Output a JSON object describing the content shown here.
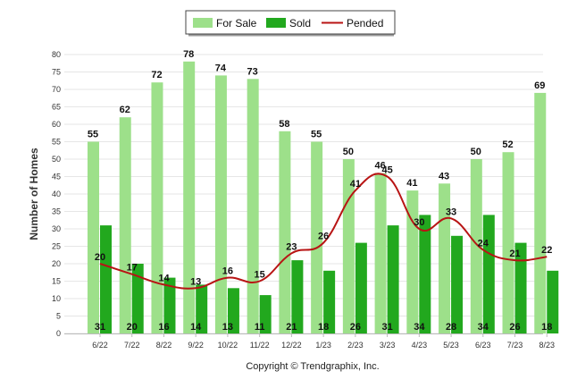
{
  "chart_data": {
    "type": "bar",
    "categories": [
      "6/22",
      "7/22",
      "8/22",
      "9/22",
      "10/22",
      "11/22",
      "12/22",
      "1/23",
      "2/23",
      "3/23",
      "4/23",
      "5/23",
      "6/23",
      "7/23",
      "8/23"
    ],
    "series": [
      {
        "name": "For Sale",
        "type": "bar",
        "color": "#9de08a",
        "values": [
          55,
          62,
          72,
          78,
          74,
          73,
          58,
          55,
          50,
          46,
          41,
          43,
          50,
          52,
          69
        ]
      },
      {
        "name": "Sold",
        "type": "bar",
        "color": "#22a81e",
        "values": [
          31,
          20,
          16,
          14,
          13,
          11,
          21,
          18,
          26,
          31,
          34,
          28,
          34,
          26,
          18
        ]
      },
      {
        "name": "Pended",
        "type": "line",
        "color": "#b81414",
        "values": [
          20,
          17,
          14,
          13,
          16,
          15,
          23,
          26,
          41,
          45,
          30,
          33,
          24,
          21,
          22
        ]
      }
    ],
    "ylabel": "Number of Homes",
    "xlabel": "",
    "ylim": [
      0,
      80
    ],
    "yticks": [
      0,
      5,
      10,
      15,
      20,
      25,
      30,
      35,
      40,
      45,
      50,
      55,
      60,
      65,
      70,
      75,
      80
    ],
    "grid": true,
    "legend_position": "top-center",
    "footer": "Copyright © Trendgraphix, Inc."
  }
}
